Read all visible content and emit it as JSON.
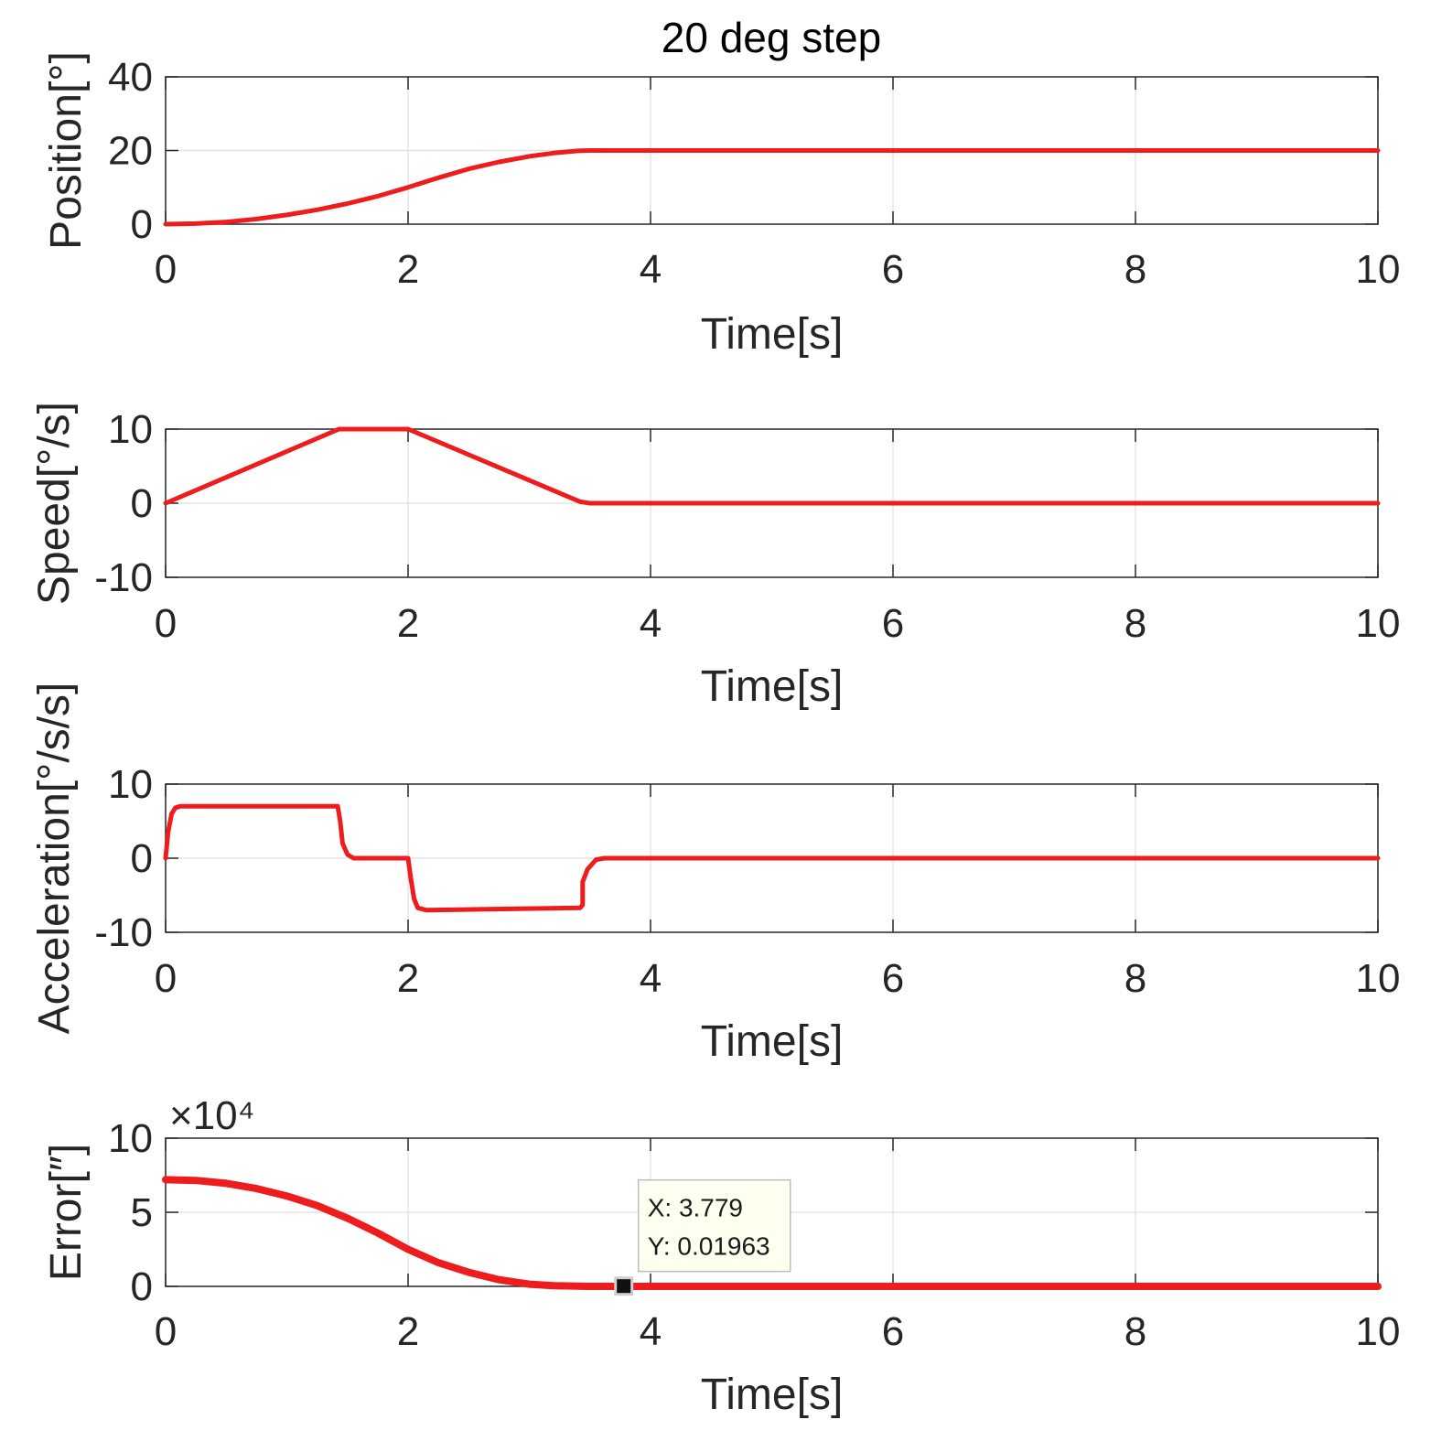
{
  "chart_data": {
    "title": "20 deg step",
    "type": "line",
    "color": "#ee1c1c",
    "subplots": [
      {
        "id": "position",
        "ylabel": "Position[°]",
        "xlabel": "Time[s]",
        "xlim": [
          0,
          10
        ],
        "ylim": [
          0,
          40
        ],
        "xticks": [
          "0",
          "2",
          "4",
          "6",
          "8",
          "10"
        ],
        "yticks": [
          "0",
          "20",
          "40"
        ],
        "grid": true,
        "series": [
          {
            "x": [
              0,
              0.25,
              0.5,
              0.75,
              1.0,
              1.25,
              1.5,
              1.75,
              2.0,
              2.25,
              2.5,
              2.75,
              3.0,
              3.2,
              3.4,
              3.5,
              4,
              6,
              8,
              10
            ],
            "y": [
              0,
              0.15,
              0.6,
              1.4,
              2.5,
              3.9,
              5.6,
              7.6,
              10.0,
              12.6,
              15.0,
              16.9,
              18.4,
              19.3,
              19.9,
              20.0,
              20.0,
              20.0,
              20.0,
              20.0
            ]
          }
        ]
      },
      {
        "id": "speed",
        "ylabel": "Speed[°/s]",
        "xlabel": "Time[s]",
        "xlim": [
          0,
          10
        ],
        "ylim": [
          -10,
          10
        ],
        "xticks": [
          "0",
          "2",
          "4",
          "6",
          "8",
          "10"
        ],
        "yticks": [
          "-10",
          "0",
          "10"
        ],
        "grid": true,
        "series": [
          {
            "x": [
              0,
              1.43,
              2.0,
              3.42,
              3.5,
              10
            ],
            "y": [
              0,
              10,
              10,
              0.2,
              0,
              0
            ]
          }
        ]
      },
      {
        "id": "acceleration",
        "ylabel": "Acceleration[°/s/s]",
        "xlabel": "Time[s]",
        "xlim": [
          0,
          10
        ],
        "ylim": [
          -10,
          10
        ],
        "xticks": [
          "0",
          "2",
          "4",
          "6",
          "8",
          "10"
        ],
        "yticks": [
          "-10",
          "0",
          "10"
        ],
        "grid": true,
        "series": [
          {
            "x": [
              0,
              0.02,
              0.05,
              0.08,
              0.12,
              1.42,
              1.44,
              1.46,
              1.5,
              1.55,
              2.0,
              2.02,
              2.05,
              2.08,
              2.15,
              3.42,
              3.44,
              3.44,
              3.48,
              3.55,
              3.62,
              10
            ],
            "y": [
              0,
              3.5,
              6.0,
              6.8,
              7.0,
              7.0,
              5.0,
              2.0,
              0.5,
              0,
              0,
              -2.5,
              -5.5,
              -6.7,
              -7.0,
              -6.7,
              -6.3,
              -3.2,
              -1.5,
              -0.2,
              0,
              0
            ]
          }
        ]
      },
      {
        "id": "error",
        "ylabel": "Error[″]",
        "xlabel": "Time[s]",
        "xlim": [
          0,
          10
        ],
        "ylim": [
          0,
          10
        ],
        "xticks": [
          "0",
          "2",
          "4",
          "6",
          "8",
          "10"
        ],
        "yticks": [
          "0",
          "5",
          "10"
        ],
        "exponent": "×10⁴",
        "grid": true,
        "series": [
          {
            "x": [
              0,
              0.25,
              0.5,
              0.75,
              1.0,
              1.25,
              1.5,
              1.75,
              2.0,
              2.25,
              2.5,
              2.75,
              3.0,
              3.2,
              3.4,
              3.5,
              4,
              6,
              8,
              10
            ],
            "y": [
              7.2,
              7.15,
              6.95,
              6.6,
              6.1,
              5.45,
              4.6,
              3.6,
              2.5,
              1.6,
              0.95,
              0.45,
              0.15,
              0.05,
              0.01,
              0,
              0,
              0,
              0,
              0
            ]
          }
        ],
        "datatip": {
          "x": 3.779,
          "y": 0.01963,
          "x_label": "X: 3.779",
          "y_label": "Y: 0.01963"
        }
      }
    ]
  }
}
